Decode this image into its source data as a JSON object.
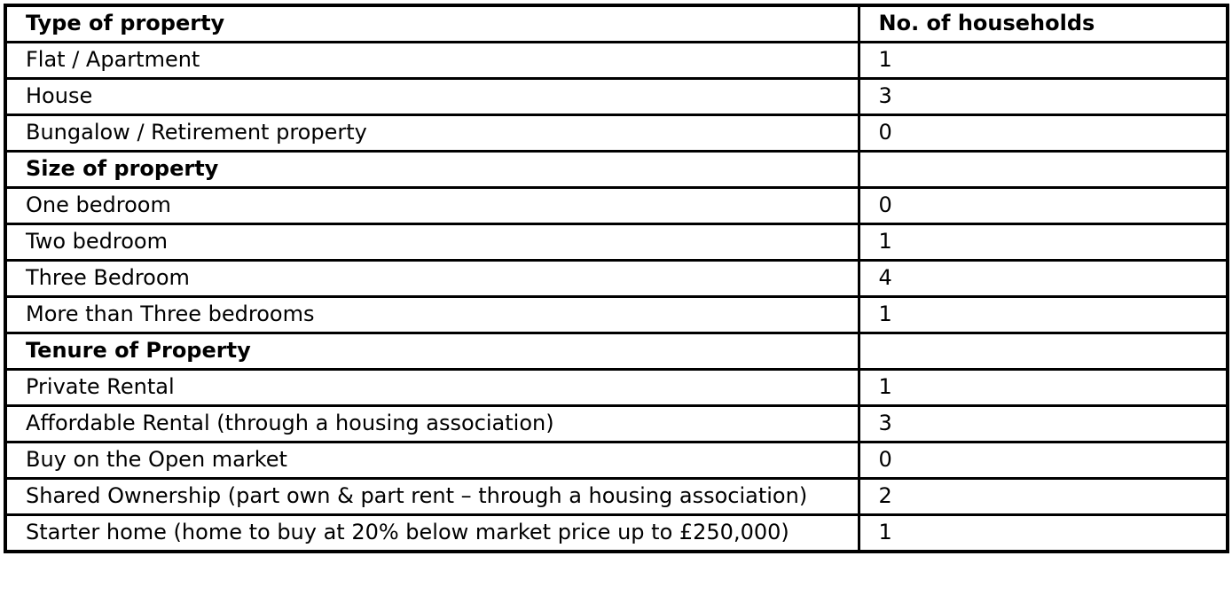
{
  "colors": {
    "border": "#000000",
    "text": "#000000",
    "background": "#ffffff"
  },
  "table": {
    "columns": [
      {
        "label": "Type of property"
      },
      {
        "label": "No. of households"
      }
    ],
    "rows": [
      {
        "label": "Flat / Apartment",
        "value": "1",
        "section": false
      },
      {
        "label": "House",
        "value": "3",
        "section": false
      },
      {
        "label": "Bungalow / Retirement property",
        "value": "0",
        "section": false
      },
      {
        "label": "Size of property",
        "value": "",
        "section": true
      },
      {
        "label": "One bedroom",
        "value": "0",
        "section": false
      },
      {
        "label": "Two bedroom",
        "value": "1",
        "section": false
      },
      {
        "label": "Three Bedroom",
        "value": "4",
        "section": false
      },
      {
        "label": "More than Three bedrooms",
        "value": "1",
        "section": false
      },
      {
        "label": "Tenure of Property",
        "value": "",
        "section": true
      },
      {
        "label": "Private Rental",
        "value": "1",
        "section": false
      },
      {
        "label": "Affordable Rental (through a housing association)",
        "value": "3",
        "section": false
      },
      {
        "label": "Buy on the Open market",
        "value": "0",
        "section": false
      },
      {
        "label": "Shared Ownership (part own & part rent – through a housing association)",
        "value": "2",
        "section": false
      },
      {
        "label": "Starter home (home to buy at 20% below market price up to £250,000)",
        "value": "1",
        "section": false
      }
    ]
  }
}
